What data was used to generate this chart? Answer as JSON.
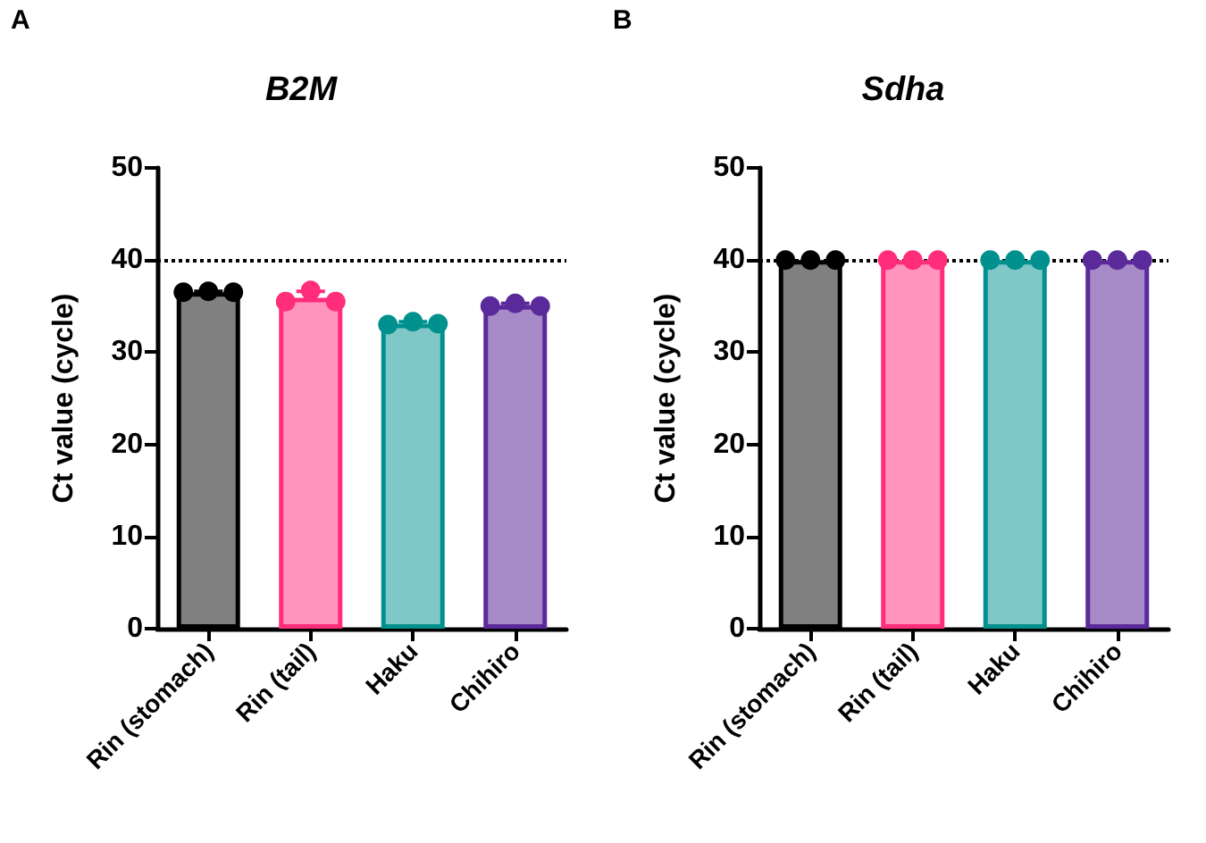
{
  "chart_data": [
    {
      "type": "bar",
      "title": "B2M",
      "ylabel": "Ct value (cycle)",
      "annotations": [
        "A"
      ],
      "categories": [
        "Rin (stomach)",
        "Rin (tail)",
        "Haku",
        "Chihiro"
      ],
      "series": [
        {
          "type": "bar",
          "values": [
            36.5,
            35.9,
            33.1,
            35.1
          ],
          "colors": [
            "#808080",
            "#ff94bd",
            "#80c8c8",
            "#a68bc8"
          ],
          "errors": [
            0.1,
            0.7,
            0.2,
            0.2
          ]
        },
        {
          "type": "scatter",
          "x": [
            "Rin (stomach)",
            "Rin (stomach)",
            "Rin (stomach)",
            "Rin (tail)",
            "Rin (tail)",
            "Rin (tail)",
            "Haku",
            "Haku",
            "Haku",
            "Chihiro",
            "Chihiro",
            "Chihiro"
          ],
          "values": [
            36.5,
            36.6,
            36.5,
            35.5,
            36.7,
            35.5,
            33.0,
            33.3,
            33.1,
            35.0,
            35.3,
            35.0
          ],
          "colors": [
            "#000000",
            "#000000",
            "#000000",
            "#ff2d7a",
            "#ff2d7a",
            "#ff2d7a",
            "#00918e",
            "#00918e",
            "#00918e",
            "#5b2a9a",
            "#5b2a9a",
            "#5b2a9a"
          ]
        }
      ],
      "ylim": [
        0,
        50
      ],
      "yticks": [
        0,
        10,
        20,
        30,
        40,
        50
      ],
      "grid": false,
      "marker": "circle",
      "ref_lines": [
        {
          "axis": "y",
          "value": 40,
          "line_style": "dotted",
          "color": "#000000"
        }
      ]
    },
    {
      "type": "bar",
      "title": "Sdha",
      "ylabel": "Ct value (cycle)",
      "annotations": [
        "B"
      ],
      "categories": [
        "Rin (stomach)",
        "Rin (tail)",
        "Haku",
        "Chihiro"
      ],
      "series": [
        {
          "type": "bar",
          "values": [
            40,
            40,
            40,
            40
          ],
          "colors": [
            "#808080",
            "#ff94bd",
            "#80c8c8",
            "#a68bc8"
          ]
        },
        {
          "type": "scatter",
          "x": [
            "Rin (stomach)",
            "Rin (stomach)",
            "Rin (stomach)",
            "Rin (tail)",
            "Rin (tail)",
            "Rin (tail)",
            "Haku",
            "Haku",
            "Haku",
            "Chihiro",
            "Chihiro",
            "Chihiro"
          ],
          "values": [
            40,
            40,
            40,
            40,
            40,
            40,
            40,
            40,
            40,
            40,
            40,
            40
          ],
          "colors": [
            "#000000",
            "#000000",
            "#000000",
            "#ff2d7a",
            "#ff2d7a",
            "#ff2d7a",
            "#00918e",
            "#00918e",
            "#00918e",
            "#5b2a9a",
            "#5b2a9a",
            "#5b2a9a"
          ]
        }
      ],
      "ylim": [
        0,
        50
      ],
      "yticks": [
        0,
        10,
        20,
        30,
        40,
        50
      ],
      "grid": false,
      "marker": "circle",
      "ref_lines": [
        {
          "axis": "y",
          "value": 40,
          "line_style": "dotted",
          "color": "#000000"
        }
      ]
    }
  ]
}
